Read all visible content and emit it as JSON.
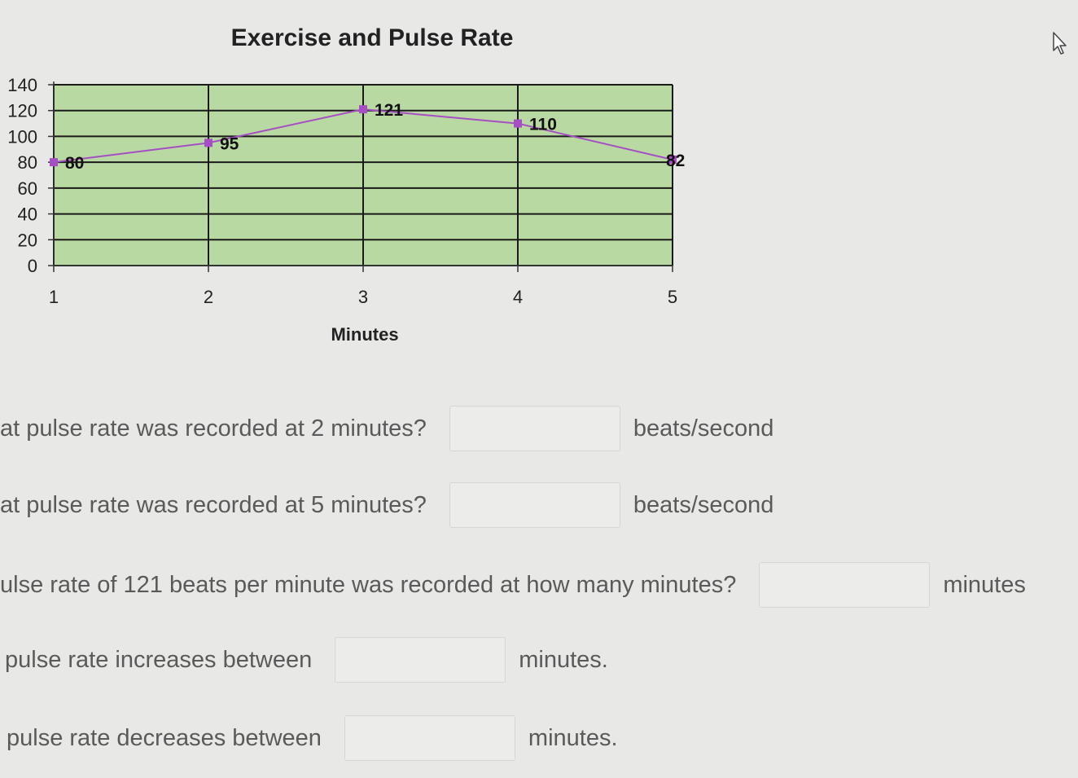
{
  "chart_data": {
    "type": "line",
    "title": "Exercise and Pulse Rate",
    "xlabel": "Minutes",
    "ylabel": "",
    "categories": [
      "1",
      "2",
      "3",
      "4",
      "5"
    ],
    "x": [
      1,
      2,
      3,
      4,
      5
    ],
    "y_ticks": [
      "0",
      "20",
      "40",
      "60",
      "80",
      "100",
      "120",
      "140"
    ],
    "ylim": [
      0,
      140
    ],
    "series": [
      {
        "values": [
          80,
          95,
          121,
          110,
          82
        ],
        "data_labels": [
          "80",
          "95",
          "121",
          "110",
          "82"
        ]
      }
    ],
    "grid": true,
    "colors": {
      "plot_bg": "#b9d9a3",
      "line": "#a64fc4",
      "marker": "#a64fc4",
      "gridline": "#1a1a1a"
    }
  },
  "questions": [
    {
      "text": "at pulse rate was recorded at 2 minutes?",
      "value": "",
      "unit": "beats/second"
    },
    {
      "text": "at pulse rate was recorded at 5 minutes?",
      "value": "",
      "unit": "beats/second"
    },
    {
      "text": "ulse rate of 121 beats per minute was recorded at how many minutes?",
      "value": "",
      "unit": "minutes"
    },
    {
      "text": "pulse rate increases between",
      "value": "",
      "unit": "minutes."
    },
    {
      "text": "pulse rate decreases between",
      "value": "",
      "unit": "minutes."
    }
  ]
}
